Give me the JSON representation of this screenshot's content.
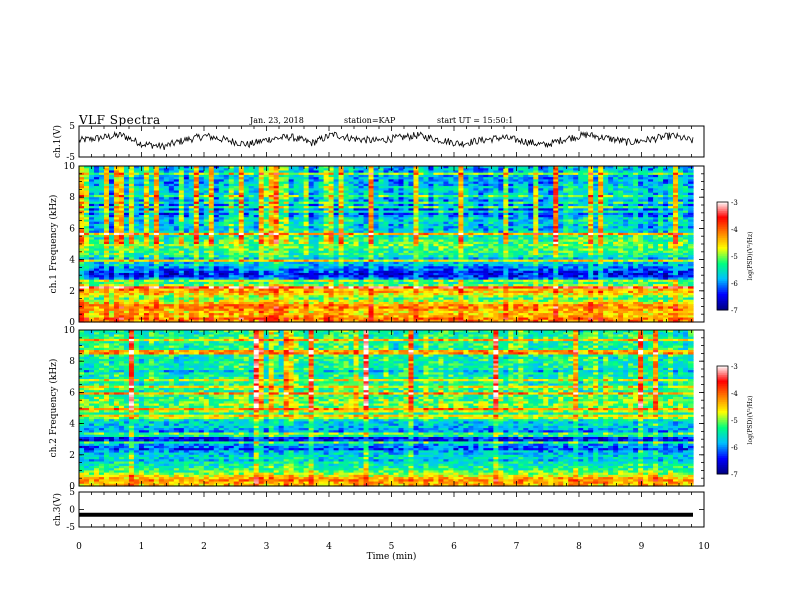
{
  "header": {
    "title": "VLF Spectra",
    "date": "Jan. 23, 2018",
    "station": "station=KAP",
    "start": "start UT = 15:50:1"
  },
  "chart_data": [
    {
      "type": "line",
      "panel": "ch1-waveform",
      "ylabel": "ch.1(V)",
      "ylim": [
        -5,
        5
      ],
      "yticks": [
        "5",
        "-5"
      ],
      "xlim": [
        0,
        10
      ],
      "series": [
        {
          "values": [
            0.3,
            1.2,
            2.1,
            -0.8,
            -1.6,
            0.5,
            1.8,
            0.4,
            -1.0,
            0.8,
            1.5,
            -0.5,
            2.3,
            0.9,
            0.2,
            1.1,
            2.0,
            0.6,
            -0.7,
            0.4,
            1.3,
            0.1,
            -1.2,
            0.9,
            2.2,
            1.0,
            -0.3,
            0.7,
            1.9,
            0.2
          ]
        }
      ]
    },
    {
      "type": "heatmap",
      "panel": "ch1-spectrogram",
      "ylabel": "ch.1 Frequency (kHz)",
      "ylim": [
        0,
        10
      ],
      "yticks": [
        "0",
        "2",
        "4",
        "6",
        "8",
        "10"
      ],
      "xlim": [
        0,
        10
      ],
      "colorbar": {
        "label": "log(PSD)(V²/Hz)",
        "range": [
          -7,
          -3
        ],
        "ticks": [
          "-3",
          "-4",
          "-5",
          "-6",
          "-7"
        ]
      },
      "band_profile_khz": [
        [
          0.0,
          -4.3
        ],
        [
          0.3,
          -4.0
        ],
        [
          0.6,
          -4.6
        ],
        [
          1.0,
          -4.1
        ],
        [
          1.5,
          -5.2
        ],
        [
          2.0,
          -4.3
        ],
        [
          2.6,
          -5.6
        ],
        [
          3.0,
          -6.6
        ],
        [
          3.5,
          -6.0
        ],
        [
          4.0,
          -5.6
        ],
        [
          4.5,
          -5.3
        ],
        [
          5.0,
          -5.1
        ],
        [
          5.5,
          -5.4
        ],
        [
          6.0,
          -5.8
        ],
        [
          6.6,
          -5.6
        ],
        [
          7.0,
          -6.3
        ],
        [
          7.5,
          -6.0
        ],
        [
          8.0,
          -5.8
        ],
        [
          8.5,
          -5.7
        ],
        [
          9.0,
          -5.9
        ],
        [
          9.5,
          -5.8
        ],
        [
          10.0,
          -5.8
        ]
      ]
    },
    {
      "type": "heatmap",
      "panel": "ch2-spectrogram",
      "ylabel": "ch.2 Frequency (kHz)",
      "ylim": [
        0,
        10
      ],
      "yticks": [
        "0",
        "2",
        "4",
        "6",
        "8",
        "10"
      ],
      "xlim": [
        0,
        10
      ],
      "colorbar": {
        "label": "log(PSD)(V²/Hz)",
        "range": [
          -7,
          -3
        ],
        "ticks": [
          "-3",
          "-4",
          "-5",
          "-6",
          "-7"
        ]
      },
      "band_profile_khz": [
        [
          0.0,
          -4.5
        ],
        [
          0.4,
          -4.2
        ],
        [
          0.8,
          -5.0
        ],
        [
          1.2,
          -5.4
        ],
        [
          1.8,
          -5.6
        ],
        [
          2.3,
          -5.9
        ],
        [
          3.0,
          -6.5
        ],
        [
          3.5,
          -6.0
        ],
        [
          4.0,
          -5.6
        ],
        [
          4.6,
          -5.4
        ],
        [
          5.2,
          -5.0
        ],
        [
          6.0,
          -5.3
        ],
        [
          7.0,
          -5.4
        ],
        [
          8.0,
          -5.4
        ],
        [
          9.0,
          -5.3
        ],
        [
          10.0,
          -5.3
        ]
      ]
    },
    {
      "type": "line",
      "panel": "ch3-waveform",
      "ylabel": "ch.3(V)",
      "ylim": [
        -5,
        5
      ],
      "yticks": [
        "5",
        "0",
        "-5"
      ],
      "xlim": [
        0,
        10
      ],
      "series": [
        {
          "values": [
            -1.5,
            -1.5
          ]
        }
      ]
    }
  ],
  "xaxis": {
    "label": "Time (min)",
    "ticks": [
      "0",
      "1",
      "2",
      "3",
      "4",
      "5",
      "6",
      "7",
      "8",
      "9",
      "10"
    ]
  },
  "colors": {
    "cmap": [
      "#000080",
      "#0000ff",
      "#00c0ff",
      "#00ff80",
      "#ffff00",
      "#ff8000",
      "#ff0000",
      "#ffffff"
    ]
  }
}
